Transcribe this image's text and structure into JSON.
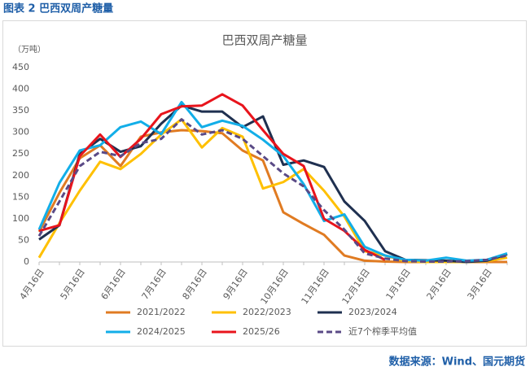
{
  "header": "图表 2  巴西双周产糖量",
  "source": "数据来源：Wind、国元期货",
  "chart_data": {
    "type": "line",
    "title": "巴西双周产糖量",
    "y_label": "（万吨）",
    "categories": [
      "4月16日",
      null,
      "5月16日",
      null,
      "6月16日",
      null,
      "7月16日",
      null,
      "8月16日",
      null,
      "9月16日",
      null,
      "10月16日",
      null,
      "11月16日",
      null,
      "12月16日",
      null,
      "1月16日",
      null,
      "2月16日",
      null,
      "3月16日",
      null
    ],
    "ylim": [
      0,
      450
    ],
    "yticks": [
      0,
      50,
      100,
      150,
      200,
      250,
      300,
      350,
      400,
      450
    ],
    "grid": false,
    "legend": "bottom",
    "series": [
      {
        "name": "2021/2022",
        "color": "#e07b22",
        "values": [
          70,
          160,
          240,
          270,
          222,
          290,
          300,
          305,
          303,
          298,
          258,
          235,
          115,
          88,
          63,
          15,
          3,
          1,
          0,
          0,
          0,
          0,
          0,
          0
        ]
      },
      {
        "name": "2022/2023",
        "color": "#ffc000",
        "values": [
          10,
          90,
          165,
          232,
          215,
          250,
          295,
          330,
          265,
          310,
          290,
          170,
          185,
          215,
          165,
          105,
          25,
          15,
          2,
          0,
          0,
          0,
          2,
          10
        ]
      },
      {
        "name": "2023/2024",
        "color": "#1f3050",
        "values": [
          52,
          85,
          250,
          285,
          255,
          268,
          320,
          362,
          348,
          348,
          312,
          337,
          225,
          235,
          220,
          140,
          95,
          25,
          5,
          4,
          3,
          0,
          3,
          18
        ]
      },
      {
        "name": "2024/2025",
        "color": "#12aee8",
        "values": [
          75,
          183,
          258,
          270,
          312,
          325,
          296,
          370,
          312,
          327,
          315,
          283,
          245,
          180,
          95,
          110,
          35,
          15,
          5,
          3,
          10,
          3,
          5,
          20
        ]
      },
      {
        "name": "2025/26",
        "color": "#e8141c",
        "values": [
          72,
          85,
          245,
          295,
          243,
          285,
          342,
          360,
          362,
          388,
          362,
          305,
          250,
          222,
          100,
          72,
          28,
          5,
          null,
          null,
          null,
          null,
          null,
          null
        ]
      },
      {
        "name": "近7个榨季平均值",
        "color": "#5a4a86",
        "dash": true,
        "values": [
          60,
          140,
          222,
          255,
          245,
          275,
          285,
          330,
          295,
          305,
          285,
          245,
          205,
          175,
          120,
          75,
          20,
          8,
          2,
          1,
          1,
          2,
          5,
          15
        ]
      }
    ]
  }
}
